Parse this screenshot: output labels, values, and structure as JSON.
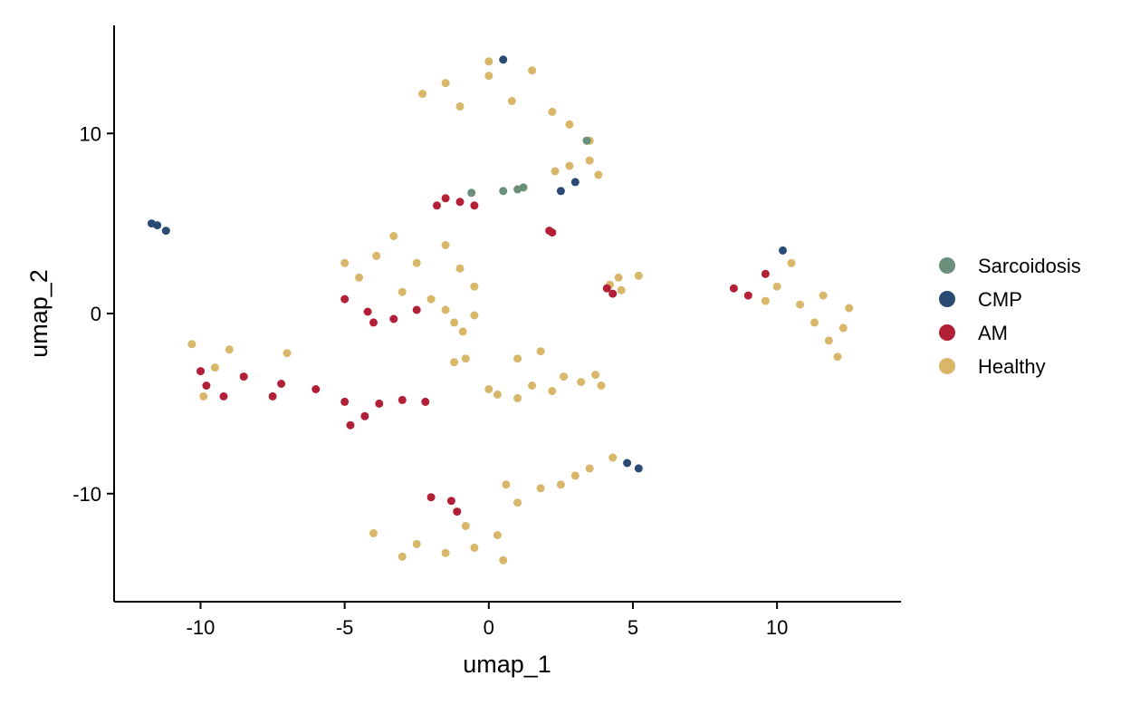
{
  "chart_data": {
    "type": "scatter",
    "title": "",
    "xlabel": "umap_1",
    "ylabel": "umap_2",
    "xlim": [
      -13,
      14.3
    ],
    "ylim": [
      -16,
      16
    ],
    "xticks": [
      -10,
      -5,
      0,
      5,
      10
    ],
    "yticks": [
      -10,
      0,
      10
    ],
    "xtick_labels": [
      "-10",
      "-5",
      "0",
      "5",
      "10"
    ],
    "ytick_labels": [
      "-10",
      "0",
      "10"
    ],
    "grid": false,
    "legend_position": "right",
    "series": [
      {
        "name": "Sarcoidosis",
        "color": "#6A8F7B"
      },
      {
        "name": "CMP",
        "color": "#2B4A73"
      },
      {
        "name": "AM",
        "color": "#B21F36"
      },
      {
        "name": "Healthy",
        "color": "#D8B66A"
      }
    ],
    "clusters": [
      {
        "series": "Healthy",
        "points": [
          [
            -3.9,
            3.2
          ],
          [
            -2.5,
            2.8
          ],
          [
            -1.0,
            2.5
          ],
          [
            -3.0,
            1.2
          ],
          [
            -2.0,
            0.8
          ],
          [
            -4.5,
            2.0
          ],
          [
            -1.5,
            3.8
          ],
          [
            -3.3,
            4.3
          ],
          [
            -0.5,
            1.5
          ],
          [
            -5.0,
            2.8
          ]
        ]
      },
      {
        "series": "AM",
        "points": [
          [
            -4.2,
            0.1
          ],
          [
            -3.3,
            -0.3
          ],
          [
            -2.5,
            0.2
          ],
          [
            -4.0,
            -0.5
          ],
          [
            -5.0,
            0.8
          ]
        ]
      },
      {
        "series": "Healthy",
        "points": [
          [
            -1.5,
            12.8
          ],
          [
            0.0,
            13.2
          ],
          [
            1.5,
            13.5
          ],
          [
            -2.3,
            12.2
          ],
          [
            0.8,
            11.8
          ],
          [
            2.2,
            11.2
          ],
          [
            -1.0,
            11.5
          ],
          [
            2.8,
            10.5
          ],
          [
            3.5,
            9.6
          ],
          [
            0.0,
            14.0
          ]
        ]
      },
      {
        "series": "Healthy",
        "points": [
          [
            3.5,
            8.5
          ],
          [
            2.8,
            8.2
          ],
          [
            3.8,
            7.7
          ],
          [
            2.3,
            7.9
          ]
        ]
      },
      {
        "series": "AM",
        "points": [
          [
            -9.8,
            -4.0
          ],
          [
            -9.2,
            -4.6
          ],
          [
            -8.5,
            -3.5
          ],
          [
            -7.2,
            -3.9
          ],
          [
            -6.0,
            -4.2
          ],
          [
            -5.0,
            -4.9
          ],
          [
            -4.3,
            -5.7
          ],
          [
            -3.8,
            -5.0
          ],
          [
            -3.0,
            -4.8
          ],
          [
            -2.2,
            -4.9
          ],
          [
            -10.0,
            -3.2
          ],
          [
            -7.5,
            -4.6
          ],
          [
            -4.8,
            -6.2
          ]
        ]
      },
      {
        "series": "Healthy",
        "points": [
          [
            -10.3,
            -1.7
          ],
          [
            -9.0,
            -2.0
          ],
          [
            -7.0,
            -2.2
          ],
          [
            -9.5,
            -3.0
          ],
          [
            -9.9,
            -4.6
          ]
        ]
      },
      {
        "series": "Healthy",
        "points": [
          [
            0.3,
            -4.5
          ],
          [
            1.5,
            -4.0
          ],
          [
            2.6,
            -3.5
          ],
          [
            3.2,
            -3.8
          ],
          [
            3.7,
            -3.4
          ],
          [
            1.0,
            -4.7
          ],
          [
            2.2,
            -4.3
          ],
          [
            3.9,
            -4.0
          ],
          [
            0.0,
            -4.2
          ]
        ]
      },
      {
        "series": "Healthy",
        "points": [
          [
            -0.8,
            -11.8
          ],
          [
            0.3,
            -12.3
          ],
          [
            1.0,
            -10.5
          ],
          [
            -2.5,
            -12.8
          ],
          [
            -4.0,
            -12.2
          ],
          [
            -1.5,
            -13.3
          ],
          [
            0.5,
            -13.7
          ],
          [
            -0.5,
            -13.0
          ],
          [
            0.6,
            -9.5
          ],
          [
            -3.0,
            -13.5
          ]
        ]
      },
      {
        "series": "AM",
        "points": [
          [
            -1.3,
            -10.4
          ],
          [
            -2.0,
            -10.2
          ],
          [
            -1.1,
            -11.0
          ]
        ]
      },
      {
        "series": "Healthy",
        "points": [
          [
            2.5,
            -9.5
          ],
          [
            3.5,
            -8.6
          ],
          [
            4.3,
            -8.0
          ],
          [
            3.0,
            -9.0
          ],
          [
            1.8,
            -9.7
          ]
        ]
      },
      {
        "series": "Healthy",
        "points": [
          [
            10.0,
            1.5
          ],
          [
            10.8,
            0.5
          ],
          [
            11.3,
            -0.5
          ],
          [
            11.8,
            -1.5
          ],
          [
            12.1,
            -2.4
          ],
          [
            10.5,
            2.8
          ],
          [
            11.6,
            1.0
          ],
          [
            12.3,
            -0.8
          ],
          [
            9.6,
            0.7
          ],
          [
            12.5,
            0.3
          ]
        ]
      },
      {
        "series": "AM",
        "points": [
          [
            9.0,
            1.0
          ],
          [
            8.5,
            1.4
          ],
          [
            9.6,
            2.2
          ]
        ]
      },
      {
        "series": "Healthy",
        "points": [
          [
            4.5,
            2.0
          ],
          [
            5.2,
            2.1
          ],
          [
            4.2,
            1.6
          ],
          [
            4.6,
            1.3
          ]
        ]
      },
      {
        "series": "AM",
        "points": [
          [
            4.3,
            1.1
          ],
          [
            4.1,
            1.4
          ]
        ]
      },
      {
        "series": "Healthy",
        "points": [
          [
            -1.2,
            -0.5
          ],
          [
            -0.5,
            -0.1
          ],
          [
            -1.5,
            0.2
          ],
          [
            -0.9,
            -1.0
          ]
        ]
      },
      {
        "series": "Healthy",
        "points": [
          [
            -1.2,
            -2.7
          ],
          [
            -0.8,
            -2.5
          ],
          [
            1.0,
            -2.5
          ],
          [
            1.8,
            -2.1
          ]
        ]
      },
      {
        "series": "AM",
        "points": [
          [
            -1.0,
            6.2
          ],
          [
            -1.5,
            6.4
          ],
          [
            -0.5,
            6.0
          ],
          [
            -1.8,
            6.0
          ]
        ]
      },
      {
        "series": "AM",
        "points": [
          [
            2.2,
            4.5
          ],
          [
            2.1,
            4.6
          ]
        ]
      },
      {
        "series": "CMP",
        "points": [
          [
            -11.2,
            4.6
          ],
          [
            -11.5,
            4.9
          ],
          [
            -11.7,
            5.0
          ]
        ]
      },
      {
        "series": "CMP",
        "points": [
          [
            5.2,
            -8.6
          ],
          [
            4.8,
            -8.3
          ],
          [
            10.2,
            3.5
          ],
          [
            3.0,
            7.3
          ],
          [
            2.5,
            6.8
          ],
          [
            0.5,
            14.1
          ]
        ]
      },
      {
        "series": "Sarcoidosis",
        "points": [
          [
            1.0,
            6.9
          ],
          [
            0.5,
            6.8
          ],
          [
            1.2,
            7.0
          ],
          [
            -0.6,
            6.7
          ],
          [
            3.4,
            9.6
          ]
        ]
      }
    ]
  }
}
